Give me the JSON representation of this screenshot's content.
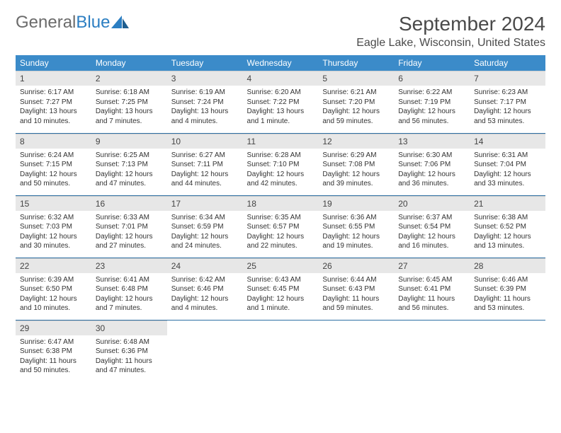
{
  "brand": {
    "word1": "General",
    "word2": "Blue",
    "logo_color": "#2b7ec2",
    "word1_color": "#6b6b6b"
  },
  "title": "September 2024",
  "location": "Eagle Lake, Wisconsin, United States",
  "colors": {
    "header_bg": "#3b8bc9",
    "header_fg": "#ffffff",
    "daynum_bg": "#e7e7e7",
    "row_border": "#2d6fa3",
    "text": "#333333"
  },
  "weekdays": [
    "Sunday",
    "Monday",
    "Tuesday",
    "Wednesday",
    "Thursday",
    "Friday",
    "Saturday"
  ],
  "weeks": [
    [
      {
        "n": "1",
        "sr": "Sunrise: 6:17 AM",
        "ss": "Sunset: 7:27 PM",
        "dl": "Daylight: 13 hours and 10 minutes."
      },
      {
        "n": "2",
        "sr": "Sunrise: 6:18 AM",
        "ss": "Sunset: 7:25 PM",
        "dl": "Daylight: 13 hours and 7 minutes."
      },
      {
        "n": "3",
        "sr": "Sunrise: 6:19 AM",
        "ss": "Sunset: 7:24 PM",
        "dl": "Daylight: 13 hours and 4 minutes."
      },
      {
        "n": "4",
        "sr": "Sunrise: 6:20 AM",
        "ss": "Sunset: 7:22 PM",
        "dl": "Daylight: 13 hours and 1 minute."
      },
      {
        "n": "5",
        "sr": "Sunrise: 6:21 AM",
        "ss": "Sunset: 7:20 PM",
        "dl": "Daylight: 12 hours and 59 minutes."
      },
      {
        "n": "6",
        "sr": "Sunrise: 6:22 AM",
        "ss": "Sunset: 7:19 PM",
        "dl": "Daylight: 12 hours and 56 minutes."
      },
      {
        "n": "7",
        "sr": "Sunrise: 6:23 AM",
        "ss": "Sunset: 7:17 PM",
        "dl": "Daylight: 12 hours and 53 minutes."
      }
    ],
    [
      {
        "n": "8",
        "sr": "Sunrise: 6:24 AM",
        "ss": "Sunset: 7:15 PM",
        "dl": "Daylight: 12 hours and 50 minutes."
      },
      {
        "n": "9",
        "sr": "Sunrise: 6:25 AM",
        "ss": "Sunset: 7:13 PM",
        "dl": "Daylight: 12 hours and 47 minutes."
      },
      {
        "n": "10",
        "sr": "Sunrise: 6:27 AM",
        "ss": "Sunset: 7:11 PM",
        "dl": "Daylight: 12 hours and 44 minutes."
      },
      {
        "n": "11",
        "sr": "Sunrise: 6:28 AM",
        "ss": "Sunset: 7:10 PM",
        "dl": "Daylight: 12 hours and 42 minutes."
      },
      {
        "n": "12",
        "sr": "Sunrise: 6:29 AM",
        "ss": "Sunset: 7:08 PM",
        "dl": "Daylight: 12 hours and 39 minutes."
      },
      {
        "n": "13",
        "sr": "Sunrise: 6:30 AM",
        "ss": "Sunset: 7:06 PM",
        "dl": "Daylight: 12 hours and 36 minutes."
      },
      {
        "n": "14",
        "sr": "Sunrise: 6:31 AM",
        "ss": "Sunset: 7:04 PM",
        "dl": "Daylight: 12 hours and 33 minutes."
      }
    ],
    [
      {
        "n": "15",
        "sr": "Sunrise: 6:32 AM",
        "ss": "Sunset: 7:03 PM",
        "dl": "Daylight: 12 hours and 30 minutes."
      },
      {
        "n": "16",
        "sr": "Sunrise: 6:33 AM",
        "ss": "Sunset: 7:01 PM",
        "dl": "Daylight: 12 hours and 27 minutes."
      },
      {
        "n": "17",
        "sr": "Sunrise: 6:34 AM",
        "ss": "Sunset: 6:59 PM",
        "dl": "Daylight: 12 hours and 24 minutes."
      },
      {
        "n": "18",
        "sr": "Sunrise: 6:35 AM",
        "ss": "Sunset: 6:57 PM",
        "dl": "Daylight: 12 hours and 22 minutes."
      },
      {
        "n": "19",
        "sr": "Sunrise: 6:36 AM",
        "ss": "Sunset: 6:55 PM",
        "dl": "Daylight: 12 hours and 19 minutes."
      },
      {
        "n": "20",
        "sr": "Sunrise: 6:37 AM",
        "ss": "Sunset: 6:54 PM",
        "dl": "Daylight: 12 hours and 16 minutes."
      },
      {
        "n": "21",
        "sr": "Sunrise: 6:38 AM",
        "ss": "Sunset: 6:52 PM",
        "dl": "Daylight: 12 hours and 13 minutes."
      }
    ],
    [
      {
        "n": "22",
        "sr": "Sunrise: 6:39 AM",
        "ss": "Sunset: 6:50 PM",
        "dl": "Daylight: 12 hours and 10 minutes."
      },
      {
        "n": "23",
        "sr": "Sunrise: 6:41 AM",
        "ss": "Sunset: 6:48 PM",
        "dl": "Daylight: 12 hours and 7 minutes."
      },
      {
        "n": "24",
        "sr": "Sunrise: 6:42 AM",
        "ss": "Sunset: 6:46 PM",
        "dl": "Daylight: 12 hours and 4 minutes."
      },
      {
        "n": "25",
        "sr": "Sunrise: 6:43 AM",
        "ss": "Sunset: 6:45 PM",
        "dl": "Daylight: 12 hours and 1 minute."
      },
      {
        "n": "26",
        "sr": "Sunrise: 6:44 AM",
        "ss": "Sunset: 6:43 PM",
        "dl": "Daylight: 11 hours and 59 minutes."
      },
      {
        "n": "27",
        "sr": "Sunrise: 6:45 AM",
        "ss": "Sunset: 6:41 PM",
        "dl": "Daylight: 11 hours and 56 minutes."
      },
      {
        "n": "28",
        "sr": "Sunrise: 6:46 AM",
        "ss": "Sunset: 6:39 PM",
        "dl": "Daylight: 11 hours and 53 minutes."
      }
    ],
    [
      {
        "n": "29",
        "sr": "Sunrise: 6:47 AM",
        "ss": "Sunset: 6:38 PM",
        "dl": "Daylight: 11 hours and 50 minutes."
      },
      {
        "n": "30",
        "sr": "Sunrise: 6:48 AM",
        "ss": "Sunset: 6:36 PM",
        "dl": "Daylight: 11 hours and 47 minutes."
      },
      {
        "empty": true
      },
      {
        "empty": true
      },
      {
        "empty": true
      },
      {
        "empty": true
      },
      {
        "empty": true
      }
    ]
  ]
}
